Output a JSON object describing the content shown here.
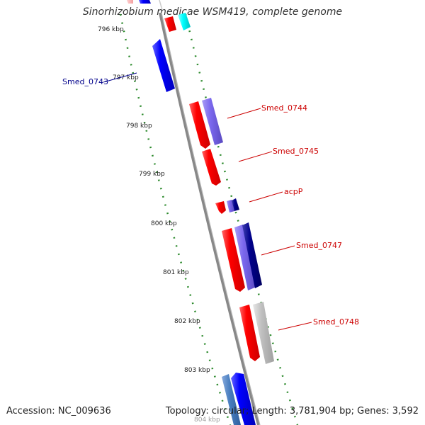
{
  "title": "Sinorhizobium medicae WSM419, complete genome",
  "footer": {
    "accession": "Accession: NC_009636",
    "summary": "Topology: circular; Length: 3,781,904 bp; Genes: 3,592"
  },
  "colors": {
    "backbone": "#808080",
    "dotted_track": "#2e8b2e",
    "forward_strand": "#ff0000",
    "reverse_strand": "#0000ff",
    "highlight": "#00ffff",
    "purple": "#7b68ee",
    "navy": "#00008b",
    "grey": "#c0c0c0",
    "label_red": "#cc0000",
    "label_blue": "#00008b"
  },
  "tick_labels": [
    "796 kbp",
    "797 kbp",
    "798 kbp",
    "799 kbp",
    "800 kbp",
    "801 kbp",
    "802 kbp",
    "803 kbp",
    "804 kbp"
  ],
  "gene_labels": [
    {
      "text": "Smed_0743",
      "color": "#00008b"
    },
    {
      "text": "Smed_0744",
      "color": "#cc0000"
    },
    {
      "text": "Smed_0745",
      "color": "#cc0000"
    },
    {
      "text": "acpP",
      "color": "#cc0000"
    },
    {
      "text": "Smed_0747",
      "color": "#cc0000"
    },
    {
      "text": "Smed_0748",
      "color": "#cc0000"
    }
  ]
}
